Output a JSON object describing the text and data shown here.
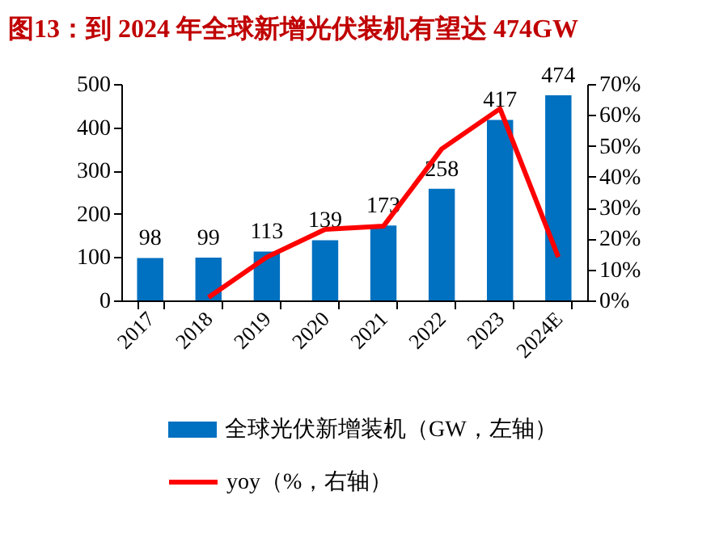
{
  "chart_data": {
    "type": "bar",
    "title": "图13：到 2024 年全球新增光伏装机有望达 474GW",
    "categories": [
      "2017",
      "2018",
      "2019",
      "2020",
      "2021",
      "2022",
      "2023",
      "2024E"
    ],
    "series": [
      {
        "name": "全球光伏新增装机（GW，左轴）",
        "color": "#0070c0",
        "values": [
          98,
          99,
          113,
          139,
          173,
          258,
          417,
          474
        ],
        "value_labels": [
          "98",
          "99",
          "113",
          "139",
          "173",
          "258",
          "417",
          "474"
        ]
      },
      {
        "name": "yoy（%，右轴）",
        "type": "line",
        "axis": "y2",
        "color": "#ff0000",
        "values": [
          null,
          1,
          14,
          23,
          24,
          49,
          62,
          14
        ]
      }
    ],
    "ylim": [
      0,
      500
    ],
    "yticks": [
      0,
      100,
      200,
      300,
      400,
      500
    ],
    "y2lim": [
      0,
      70
    ],
    "y2ticks": [
      {
        "value": 0,
        "label": "0%"
      },
      {
        "value": 10,
        "label": "10%"
      },
      {
        "value": 20,
        "label": "20%"
      },
      {
        "value": 30,
        "label": "30%"
      },
      {
        "value": 40,
        "label": "40%"
      },
      {
        "value": 50,
        "label": "50%"
      },
      {
        "value": 60,
        "label": "60%"
      },
      {
        "value": 70,
        "label": "70%"
      }
    ],
    "grid": false,
    "legend": "bottom",
    "marker": "none"
  }
}
